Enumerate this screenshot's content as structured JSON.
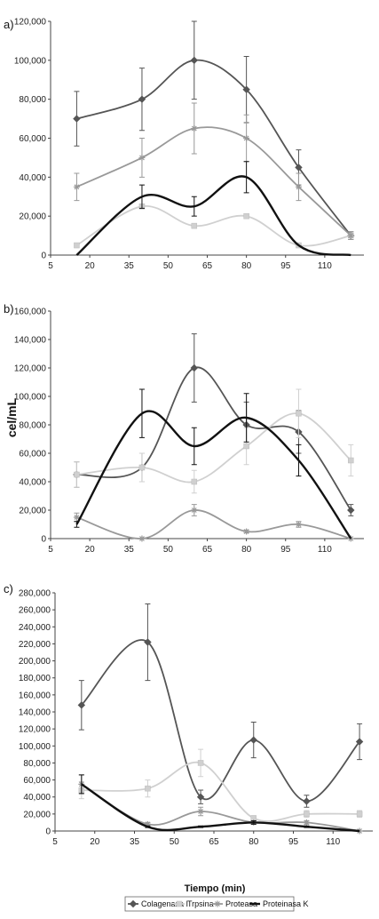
{
  "figure": {
    "ylabel": "cel/mL",
    "xlabel": "Tiempo (min)"
  },
  "legend": [
    {
      "name": "Colagenasa I",
      "color": "#555555",
      "marker": "diamond"
    },
    {
      "name": "Trpsina",
      "color": "#d0d0d0",
      "marker": "square"
    },
    {
      "name": "Proteasa",
      "color": "#999999",
      "marker": "star"
    },
    {
      "name": "Proteinasa K",
      "color": "#111111",
      "marker": "none"
    }
  ],
  "chart_data": [
    {
      "type": "line",
      "panel_label": "a)",
      "x_tick_labels": [
        "5",
        "20",
        "35",
        "50",
        "65",
        "80",
        "95",
        "110"
      ],
      "x": [
        15,
        40,
        60,
        80,
        100,
        120
      ],
      "xlim": [
        5,
        125
      ],
      "ylim": [
        0,
        120000
      ],
      "y_ticks": [
        "0",
        "20,000",
        "40,000",
        "60,000",
        "80,000",
        "100,000",
        "120,000"
      ],
      "series": [
        {
          "name": "Colagenasa I",
          "values": [
            70000,
            80000,
            100000,
            85000,
            45000,
            10000
          ],
          "errors": [
            14000,
            16000,
            20000,
            17000,
            9000,
            2000
          ]
        },
        {
          "name": "Trpsina",
          "values": [
            5000,
            25000,
            15000,
            20000,
            5000,
            10000
          ],
          "errors": [
            0,
            0,
            0,
            0,
            0,
            0
          ]
        },
        {
          "name": "Proteasa",
          "values": [
            35000,
            50000,
            65000,
            60000,
            35000,
            10000
          ],
          "errors": [
            7000,
            10000,
            13000,
            12000,
            7000,
            2000
          ]
        },
        {
          "name": "Proteinasa K",
          "values": [
            0,
            30000,
            25000,
            40000,
            5000,
            0
          ],
          "errors": [
            0,
            6000,
            5000,
            8000,
            0,
            0
          ]
        }
      ]
    },
    {
      "type": "line",
      "panel_label": "b)",
      "x_tick_labels": [
        "5",
        "20",
        "35",
        "50",
        "65",
        "80",
        "95",
        "110"
      ],
      "x": [
        15,
        40,
        60,
        80,
        100,
        120
      ],
      "xlim": [
        5,
        125
      ],
      "ylim": [
        0,
        160000
      ],
      "y_ticks": [
        "0",
        "20,000",
        "40,000",
        "60,000",
        "80,000",
        "100,000",
        "120,000",
        "140,000",
        "160,000"
      ],
      "series": [
        {
          "name": "Colagenasa I",
          "values": [
            45000,
            50000,
            120000,
            80000,
            75000,
            20000
          ],
          "errors": [
            9000,
            10000,
            24000,
            16000,
            15000,
            4000
          ]
        },
        {
          "name": "Trpsina",
          "values": [
            45000,
            50000,
            40000,
            65000,
            88000,
            55000
          ],
          "errors": [
            9000,
            10000,
            8000,
            13000,
            17000,
            11000
          ]
        },
        {
          "name": "Proteasa",
          "values": [
            15000,
            0,
            20000,
            5000,
            10000,
            0
          ],
          "errors": [
            3000,
            0,
            4000,
            1000,
            2000,
            0
          ]
        },
        {
          "name": "Proteinasa K",
          "values": [
            10000,
            88000,
            65000,
            85000,
            55000,
            0
          ],
          "errors": [
            2000,
            17000,
            13000,
            17000,
            11000,
            0
          ]
        }
      ]
    },
    {
      "type": "line",
      "panel_label": "c)",
      "x_tick_labels": [
        "5",
        "20",
        "35",
        "50",
        "65",
        "80",
        "95",
        "110"
      ],
      "x": [
        15,
        40,
        60,
        80,
        100,
        120
      ],
      "xlim": [
        5,
        125
      ],
      "ylim": [
        0,
        280000
      ],
      "y_ticks": [
        "0",
        "20,000",
        "40,000",
        "60,000",
        "80,000",
        "100,000",
        "120,000",
        "140,000",
        "160,000",
        "180,000",
        "200,000",
        "220,000",
        "240,000",
        "260,000",
        "280,000"
      ],
      "series": [
        {
          "name": "Colagenasa I",
          "values": [
            148000,
            222000,
            40000,
            107000,
            35000,
            105000
          ],
          "errors": [
            29000,
            45000,
            8000,
            21000,
            7000,
            21000
          ]
        },
        {
          "name": "Trpsina",
          "values": [
            48000,
            50000,
            80000,
            15000,
            20000,
            20000
          ],
          "errors": [
            10000,
            10000,
            16000,
            3000,
            4000,
            4000
          ]
        },
        {
          "name": "Proteasa",
          "values": [
            55000,
            8000,
            23000,
            10000,
            10000,
            0
          ],
          "errors": [
            11000,
            2000,
            5000,
            2000,
            2000,
            0
          ]
        },
        {
          "name": "Proteinasa K",
          "values": [
            55000,
            5000,
            5000,
            10000,
            5000,
            0
          ],
          "errors": [
            11000,
            1000,
            1000,
            2000,
            1000,
            0
          ]
        }
      ]
    }
  ]
}
